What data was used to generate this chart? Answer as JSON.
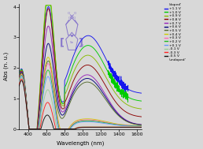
{
  "xlabel": "Wavelength (nm)",
  "ylabel": "Abs (n. u.)",
  "xlim": [
    300,
    1650
  ],
  "ylim": [
    0,
    4.1
  ],
  "xticks": [
    400,
    600,
    800,
    1000,
    1200,
    1400,
    1600
  ],
  "yticks": [
    0,
    1,
    2,
    3,
    4
  ],
  "bg_color": "#d8d8d8",
  "voltages": [
    1.1,
    1.0,
    0.9,
    0.8,
    0.7,
    0.6,
    0.5,
    0.4,
    0.3,
    0.2,
    0.1,
    -0.1,
    -0.3,
    -0.5
  ],
  "colors": {
    "1.1": "#1515ee",
    "1.0": "#00cc00",
    "0.9": "#88bb00",
    "0.8": "#8b0000",
    "0.7": "#9922bb",
    "0.6": "#00007b",
    "0.5": "#556b2f",
    "0.4": "#cccc00",
    "0.3": "#ff69b4",
    "0.2": "#22bb22",
    "0.1": "#6699ff",
    "-0.1": "#99cc99",
    "-0.3": "#ff2222",
    "-0.5": "#111111"
  },
  "legend_labels": [
    "'doped'",
    "+1.1 V",
    "+1.0 V",
    "+0.9 V",
    "+0.8 V",
    "+0.7 V",
    "+0.6 V",
    "+0.5 V",
    "+0.4 V",
    "+0.3 V",
    "+0.2 V",
    "+0.1 V",
    "-0.1 V",
    "-0.3 V",
    "-0.5 V",
    "'undoped'"
  ],
  "legend_colors": [
    null,
    "#1515ee",
    "#00cc00",
    "#88bb00",
    "#8b0000",
    "#9922bb",
    "#00007b",
    "#556b2f",
    "#cccc00",
    "#ff69b4",
    "#22bb22",
    "#6699ff",
    "#99cc99",
    "#ff2222",
    "#111111",
    null
  ]
}
